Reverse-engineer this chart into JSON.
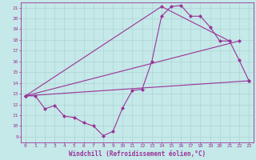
{
  "xlabel": "Windchill (Refroidissement éolien,°C)",
  "ylabel": "",
  "xlim": [
    -0.5,
    23.5
  ],
  "ylim": [
    8.5,
    21.5
  ],
  "xticks": [
    0,
    1,
    2,
    3,
    4,
    5,
    6,
    7,
    8,
    9,
    10,
    11,
    12,
    13,
    14,
    15,
    16,
    17,
    18,
    19,
    20,
    21,
    22,
    23
  ],
  "yticks": [
    9,
    10,
    11,
    12,
    13,
    14,
    15,
    16,
    17,
    18,
    19,
    20,
    21
  ],
  "bg_color": "#c5e8e8",
  "grid_color": "#a8d0d0",
  "line_color": "#993399",
  "line1_x": [
    0,
    1,
    2,
    3,
    4,
    5,
    6,
    7,
    8,
    9,
    10,
    11,
    12,
    13,
    14,
    15,
    16,
    17,
    18,
    19,
    20,
    21,
    22,
    23
  ],
  "line1_y": [
    12.8,
    12.8,
    11.6,
    11.9,
    10.9,
    10.8,
    10.3,
    10.0,
    9.1,
    9.5,
    11.7,
    13.3,
    13.4,
    16.0,
    20.2,
    21.1,
    21.2,
    20.2,
    20.2,
    19.2,
    17.9,
    17.9,
    16.1,
    14.2
  ],
  "line2_x": [
    0,
    23
  ],
  "line2_y": [
    12.8,
    14.2
  ],
  "line3_x": [
    0,
    22
  ],
  "line3_y": [
    12.8,
    17.9
  ],
  "line4_x": [
    0,
    14,
    21
  ],
  "line4_y": [
    12.8,
    21.1,
    17.9
  ],
  "marker": "D",
  "markersize": 2.0,
  "linewidth": 0.8,
  "label_fontsize": 5.5,
  "tick_fontsize": 4.5
}
